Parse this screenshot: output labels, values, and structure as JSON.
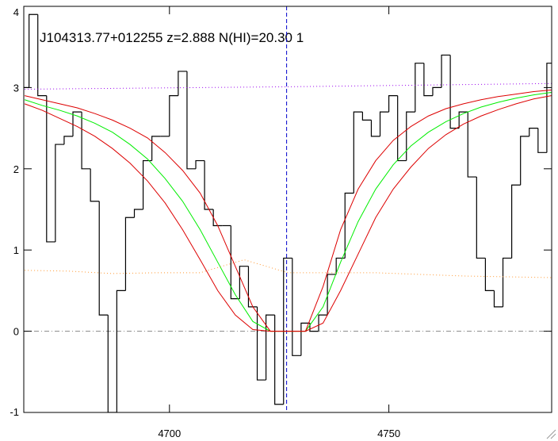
{
  "chart_data": {
    "type": "line",
    "title": "J104313.77+012255 z=2.888 N(HI)=20.30 1",
    "xlim": [
      4666.8,
      4787.1
    ],
    "ylim": [
      -1,
      4
    ],
    "xticks": [
      4700,
      4750
    ],
    "yticks": [
      -1,
      0,
      1,
      2,
      3,
      4
    ],
    "zero_line": {
      "y": 0,
      "color": "#888888"
    },
    "center_line": {
      "x": 4726.7,
      "color": "#0000cc"
    },
    "series": [
      {
        "color": "#000000",
        "style": "step",
        "x": [
          4667,
          4669,
          4671,
          4673,
          4675,
          4677,
          4679,
          4681,
          4683,
          4685,
          4687,
          4689,
          4691,
          4693,
          4695,
          4697,
          4699,
          4701,
          4703,
          4705,
          4707,
          4709,
          4711,
          4713,
          4715,
          4717,
          4719,
          4721,
          4723,
          4725,
          4727,
          4729,
          4731,
          4733,
          4735,
          4737,
          4739,
          4741,
          4743,
          4745,
          4747,
          4749,
          4751,
          4753,
          4755,
          4757,
          4759,
          4761,
          4763,
          4765,
          4767,
          4769,
          4771,
          4773,
          4775,
          4777,
          4779,
          4781,
          4783,
          4785,
          4787
        ],
        "values": [
          3.0,
          3.9,
          2.9,
          1.1,
          2.3,
          2.4,
          2.7,
          2.0,
          1.6,
          0.2,
          -1.0,
          0.5,
          1.4,
          1.5,
          2.1,
          2.4,
          2.4,
          2.9,
          3.2,
          2.0,
          2.1,
          1.5,
          1.3,
          1.3,
          0.4,
          0.8,
          0.3,
          -0.6,
          0.2,
          -0.9,
          0.9,
          -0.3,
          0.1,
          0.0,
          0.2,
          0.7,
          0.9,
          1.7,
          2.7,
          2.6,
          2.4,
          2.7,
          2.9,
          2.1,
          2.7,
          3.3,
          2.9,
          3.0,
          3.4,
          2.5,
          2.7,
          1.9,
          0.9,
          0.5,
          0.3,
          0.9,
          1.8,
          2.4,
          2.5,
          2.2,
          3.3
        ]
      },
      {
        "color": "#00ee00",
        "style": "solid",
        "x": [
          4667,
          4671,
          4675,
          4679,
          4683,
          4687,
          4691,
          4695,
          4699,
          4703,
          4707,
          4711,
          4715,
          4719,
          4723,
          4727,
          4731,
          4735,
          4739,
          4743,
          4747,
          4751,
          4755,
          4759,
          4763,
          4767,
          4771,
          4775,
          4779,
          4783,
          4787
        ],
        "values": [
          2.85,
          2.78,
          2.72,
          2.65,
          2.56,
          2.45,
          2.3,
          2.12,
          1.88,
          1.6,
          1.25,
          0.85,
          0.45,
          0.12,
          0.0,
          0.0,
          0.0,
          0.3,
          0.85,
          1.35,
          1.75,
          2.05,
          2.28,
          2.45,
          2.58,
          2.68,
          2.76,
          2.82,
          2.87,
          2.91,
          2.94
        ]
      },
      {
        "color": "#dd0000",
        "style": "solid",
        "x": [
          4667,
          4671,
          4675,
          4679,
          4683,
          4687,
          4691,
          4695,
          4699,
          4703,
          4707,
          4711,
          4715,
          4719,
          4723,
          4727,
          4731,
          4735,
          4739,
          4743,
          4747,
          4751,
          4755,
          4759,
          4763,
          4767,
          4771,
          4775,
          4779,
          4783,
          4787
        ],
        "values": [
          2.9,
          2.85,
          2.8,
          2.75,
          2.68,
          2.6,
          2.5,
          2.38,
          2.2,
          1.98,
          1.7,
          1.3,
          0.8,
          0.3,
          0.0,
          0.0,
          0.0,
          0.55,
          1.25,
          1.75,
          2.1,
          2.35,
          2.52,
          2.65,
          2.74,
          2.8,
          2.85,
          2.89,
          2.92,
          2.95,
          2.97
        ]
      },
      {
        "color": "#dd0000",
        "style": "solid",
        "x": [
          4667,
          4671,
          4675,
          4679,
          4683,
          4687,
          4691,
          4695,
          4699,
          4703,
          4707,
          4711,
          4715,
          4719,
          4723,
          4727,
          4731,
          4735,
          4739,
          4743,
          4747,
          4751,
          4755,
          4759,
          4763,
          4767,
          4771,
          4775,
          4779,
          4783,
          4787
        ],
        "values": [
          2.8,
          2.72,
          2.62,
          2.52,
          2.4,
          2.25,
          2.07,
          1.85,
          1.58,
          1.25,
          0.88,
          0.5,
          0.2,
          0.02,
          0.0,
          0.0,
          0.0,
          0.1,
          0.5,
          0.95,
          1.4,
          1.75,
          2.02,
          2.25,
          2.42,
          2.55,
          2.65,
          2.73,
          2.8,
          2.86,
          2.9
        ]
      },
      {
        "color": "#9900ee",
        "style": "dotted",
        "x": [
          4667,
          4727,
          4787
        ],
        "values": [
          2.98,
          3.01,
          3.05
        ]
      },
      {
        "color": "#ff9933",
        "style": "dotted",
        "x": [
          4667,
          4677,
          4687,
          4697,
          4707,
          4717,
          4727,
          4737,
          4747,
          4757,
          4767,
          4777,
          4787
        ],
        "values": [
          0.75,
          0.74,
          0.71,
          0.72,
          0.72,
          0.88,
          0.72,
          0.72,
          0.72,
          0.7,
          0.68,
          0.67,
          0.66
        ]
      }
    ]
  }
}
